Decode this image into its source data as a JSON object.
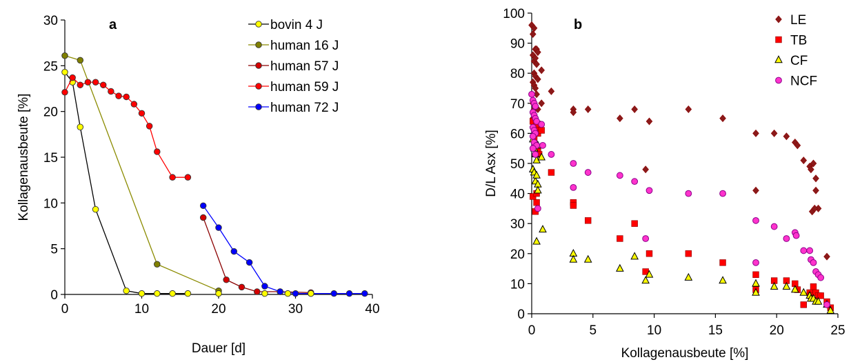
{
  "chart_data": [
    {
      "type": "line",
      "panel_label": "a",
      "xlabel": "Dauer [d]",
      "ylabel": "Kollagenausbeute [%]",
      "xlim": [
        0,
        40
      ],
      "ylim": [
        0,
        30
      ],
      "x_ticks": [
        "0",
        "10",
        "20",
        "30",
        "40"
      ],
      "y_ticks": [
        "0",
        "5",
        "10",
        "15",
        "20",
        "25",
        "30"
      ],
      "grid": false,
      "legend_position": "top-right",
      "series": [
        {
          "name": "bovin 4 J",
          "color": "#000000",
          "fill": "#ffff00",
          "x": [
            0,
            1,
            2,
            4,
            8,
            10,
            12,
            14,
            16
          ],
          "y": [
            24.3,
            23.2,
            18.3,
            9.3,
            0.4,
            0.1,
            0.1,
            0.1,
            0.1
          ]
        },
        {
          "name": "human 16 J",
          "color": "#8b8b00",
          "fill": "#808000",
          "x": [
            0,
            2,
            12,
            20
          ],
          "y": [
            26.1,
            25.6,
            3.3,
            0.4
          ]
        },
        {
          "name": "human 57 J",
          "color": "#8b0000",
          "fill": "#d40000",
          "x": [
            18,
            21,
            23,
            25,
            28,
            32
          ],
          "y": [
            8.4,
            1.6,
            0.8,
            0.3,
            0.3,
            0.2
          ]
        },
        {
          "name": "human 59 J",
          "color": "#ff0000",
          "fill": "#ff0000",
          "x": [
            0,
            1,
            2,
            3,
            4,
            5,
            6,
            7,
            8,
            9,
            10,
            11,
            12,
            14,
            16
          ],
          "y": [
            22.1,
            23.7,
            22.9,
            23.2,
            23.2,
            22.9,
            22.2,
            21.7,
            21.6,
            20.8,
            19.8,
            18.4,
            15.6,
            12.8,
            12.8
          ]
        },
        {
          "name": "human 72 J",
          "color": "#0000ff",
          "fill": "#0000ff",
          "x": [
            18,
            20,
            22,
            24,
            26,
            28,
            30,
            32,
            35,
            37,
            39
          ],
          "y": [
            9.7,
            7.3,
            4.7,
            3.5,
            0.9,
            0.3,
            0.1,
            0.1,
            0.1,
            0.1,
            0.1
          ]
        }
      ],
      "extra_points": [
        {
          "x": 20,
          "y": 0.1,
          "fill": "#ffff00"
        },
        {
          "x": 26,
          "y": 0.1,
          "fill": "#ffff00"
        },
        {
          "x": 29,
          "y": 0.1,
          "fill": "#ffff00"
        },
        {
          "x": 32,
          "y": 0.1,
          "fill": "#ffff00"
        }
      ]
    },
    {
      "type": "scatter",
      "panel_label": "b",
      "xlabel": "Kollagenausbeute [%]",
      "ylabel": "D/L Asx [%]",
      "xlim": [
        0,
        25
      ],
      "ylim": [
        0,
        100
      ],
      "x_ticks": [
        "0",
        "5",
        "10",
        "15",
        "20",
        "25"
      ],
      "y_ticks": [
        "0",
        "10",
        "20",
        "30",
        "40",
        "50",
        "60",
        "70",
        "80",
        "90",
        "100"
      ],
      "grid": false,
      "legend_position": "top-right",
      "series": [
        {
          "name": "LE",
          "marker": "diamond",
          "color": "#8b0000",
          "fill": "#8b1a1a",
          "x": [
            0,
            0.1,
            0.2,
            0.3,
            0.4,
            0.5,
            0.1,
            0.2,
            0.3,
            0.4,
            0.2,
            0.3,
            0.5,
            0.1,
            0.2,
            0.3,
            0.4,
            0.1,
            0.2,
            0.5,
            0.8,
            0.1,
            0.3,
            0.7,
            1.6,
            0.8,
            3.4,
            3.4,
            4.6,
            7.2,
            8.4,
            9.3,
            9.6,
            12.8,
            15.6,
            18.3,
            18.3,
            19.8,
            20.8,
            21.5,
            21.7,
            22.2,
            22.7,
            22.8,
            23.0,
            23.2,
            23.2,
            23.4,
            22.9,
            23.1,
            24.1
          ],
          "y": [
            96,
            93,
            95,
            88,
            88,
            87,
            86,
            84,
            85,
            83,
            80,
            79,
            78,
            77,
            76,
            75,
            73,
            70,
            68,
            68,
            81,
            65,
            64,
            63,
            74,
            70,
            68,
            67,
            68,
            65,
            68,
            48,
            64,
            68,
            65,
            60,
            41,
            60,
            59,
            57,
            56,
            51,
            49,
            48,
            50,
            45,
            41,
            35,
            34,
            35,
            19
          ]
        },
        {
          "name": "TB",
          "marker": "square",
          "color": "#8b0000",
          "fill": "#ff0000",
          "x": [
            0.1,
            0.2,
            0.3,
            0.4,
            0.5,
            0.2,
            0.3,
            0.5,
            0.1,
            0.4,
            0.8,
            0.6,
            0.3,
            0.4,
            1.6,
            3.4,
            3.4,
            4.6,
            7.2,
            8.4,
            9.3,
            9.6,
            12.8,
            15.6,
            18.3,
            18.3,
            19.8,
            20.8,
            21.5,
            21.7,
            22.2,
            22.7,
            22.8,
            23.0,
            23.2,
            23.4,
            23.6,
            24.1,
            24.4
          ],
          "y": [
            64,
            62,
            61,
            63,
            60,
            58,
            56,
            54,
            39,
            37,
            61,
            53,
            34,
            40,
            47,
            37,
            36,
            31,
            25,
            30,
            14,
            20,
            20,
            17,
            13,
            8,
            11,
            11,
            10,
            8,
            3,
            7,
            6,
            9,
            7,
            6,
            6,
            4,
            2
          ]
        },
        {
          "name": "CF",
          "marker": "triangle",
          "color": "#000000",
          "fill": "#ffff00",
          "x": [
            0.1,
            0.2,
            0.3,
            0.4,
            0.1,
            0.2,
            0.3,
            0.5,
            0.4,
            0.5,
            0.8,
            0.9,
            0.4,
            0.5,
            3.4,
            3.4,
            4.6,
            7.2,
            8.4,
            9.3,
            9.6,
            12.8,
            15.6,
            18.3,
            18.3,
            19.8,
            20.8,
            21.5,
            22.2,
            22.7,
            22.8,
            23.0,
            23.2,
            23.4,
            24.1,
            24.4
          ],
          "y": [
            58,
            55,
            53,
            51,
            48,
            47,
            44,
            56,
            24,
            43,
            52,
            28,
            46,
            41,
            20,
            18,
            18,
            15,
            19,
            11,
            13,
            12,
            11,
            10,
            7,
            9,
            9,
            8,
            7,
            6,
            5,
            5,
            4,
            4,
            3,
            1
          ]
        },
        {
          "name": "NCF",
          "marker": "circle",
          "color": "#8b008b",
          "fill": "#ff33cc",
          "x": [
            0.0,
            0.1,
            0.2,
            0.3,
            0.1,
            0.2,
            0.3,
            0.4,
            0.1,
            0.2,
            0.3,
            0.1,
            0.2,
            0.4,
            0.1,
            0.3,
            0.5,
            0.9,
            0.8,
            1.6,
            3.4,
            3.4,
            4.6,
            7.2,
            8.4,
            9.3,
            9.6,
            12.8,
            15.6,
            18.3,
            18.3,
            19.8,
            20.8,
            21.5,
            21.6,
            22.2,
            22.7,
            22.8,
            23.0,
            23.2,
            23.4,
            23.6,
            24.1
          ],
          "y": [
            73,
            71,
            70,
            69,
            67,
            66,
            65,
            64,
            62,
            61,
            60,
            59,
            57,
            56,
            55,
            53,
            35,
            56,
            63,
            53,
            50,
            42,
            47,
            46,
            44,
            25,
            41,
            40,
            40,
            31,
            17,
            29,
            25,
            27,
            26,
            21,
            21,
            18,
            17,
            14,
            13,
            12,
            3
          ]
        }
      ]
    }
  ]
}
